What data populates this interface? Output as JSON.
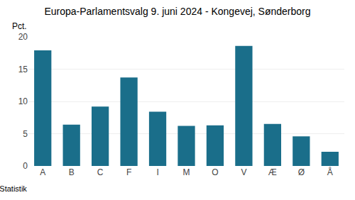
{
  "chart_data": {
    "type": "bar",
    "title": "Europa-Parlamentsvalg 9. juni 2024 - Kongevej, Sønderborg",
    "ylabel": "Pct.",
    "annotations": [
      "© Danmarks Statistik"
    ],
    "categories": [
      "A",
      "B",
      "C",
      "F",
      "I",
      "M",
      "O",
      "V",
      "Æ",
      "Ø",
      "Å"
    ],
    "values": [
      17.9,
      6.4,
      9.2,
      13.7,
      8.4,
      6.2,
      6.3,
      18.6,
      6.5,
      4.6,
      2.2
    ],
    "color": "#1a6e8a",
    "ylim": [
      0,
      20
    ],
    "yticks": [
      0,
      5,
      10,
      15,
      20
    ],
    "grid": true
  }
}
